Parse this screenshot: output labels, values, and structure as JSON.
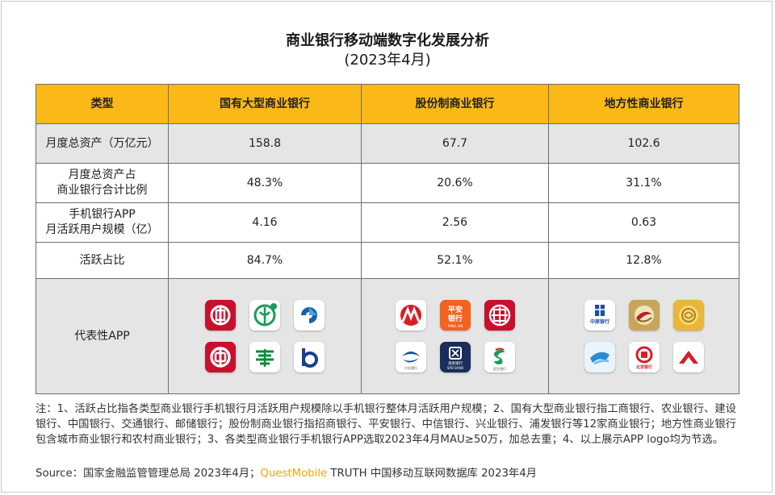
{
  "title": {
    "line1": "商业银行移动端数字化发展分析",
    "line2": "(2023年4月)"
  },
  "table": {
    "headers": [
      "类型",
      "国有大型商业银行",
      "股份制商业银行",
      "地方性商业银行"
    ],
    "rows": [
      {
        "label_lines": [
          "月度总资产（万亿元）"
        ],
        "values": [
          "158.8",
          "67.7",
          "102.6"
        ]
      },
      {
        "label_lines": [
          "月度总资产占",
          "商业银行合计比例"
        ],
        "values": [
          "48.3%",
          "20.6%",
          "31.1%"
        ]
      },
      {
        "label_lines": [
          "手机银行APP",
          "月活跃用户规模（亿）"
        ],
        "values": [
          "4.16",
          "2.56",
          "0.63"
        ]
      },
      {
        "label_lines": [
          "活跃占比"
        ],
        "values": [
          "84.7%",
          "52.1%",
          "12.8%"
        ]
      }
    ],
    "app_row_label": "代表性APP",
    "app_groups": [
      {
        "icons": [
          {
            "name": "icbc-app-icon",
            "bg": "#c8102e"
          },
          {
            "name": "abc-app-icon",
            "bg": "#ffffff"
          },
          {
            "name": "ccb-app-icon",
            "bg": "#ffffff"
          },
          {
            "name": "boc-app-icon",
            "bg": "#c8102e"
          },
          {
            "name": "psbc-app-icon",
            "bg": "#ffffff"
          },
          {
            "name": "bocom-app-icon",
            "bg": "#ffffff"
          }
        ]
      },
      {
        "icons": [
          {
            "name": "cmb-app-icon",
            "bg": "#ffffff"
          },
          {
            "name": "pingan-app-icon",
            "bg": "#f2631f",
            "text": "平安\n银行",
            "sub": "PING AN"
          },
          {
            "name": "citic-app-icon",
            "bg": "#c8102e"
          },
          {
            "name": "cib-app-icon",
            "bg": "#ffffff",
            "sub": "兴业银行"
          },
          {
            "name": "spdb-app-icon",
            "bg": "#1b2d5a",
            "sub": "浦发银行\nSPD BANK"
          },
          {
            "name": "cmbc-app-icon",
            "bg": "#ffffff",
            "sub": "民生银行"
          }
        ]
      },
      {
        "icons": [
          {
            "name": "bank-of-beijing-app-icon",
            "bg": "#ffffff",
            "sub": "中原银行"
          },
          {
            "name": "gold-bank-app-icon",
            "bg": "#c9a55a"
          },
          {
            "name": "gold-coin-app-icon",
            "bg": "#e8b73a"
          },
          {
            "name": "blue-bank-app-icon",
            "bg": "#2b8ad6"
          },
          {
            "name": "beijing-bank-app-icon",
            "bg": "#ffffff",
            "sub": "北京银行"
          },
          {
            "name": "red-arrow-bank-app-icon",
            "bg": "#ffffff"
          }
        ]
      }
    ]
  },
  "notes": "注：1、活跃占比指各类型商业银行手机银行月活跃用户规模除以手机银行整体月活跃用户规模；2、国有大型商业银行指工商银行、农业银行、建设银行、中国银行、交通银行、邮储银行；股份制商业银行指招商银行、平安银行、中信银行、兴业银行、浦发银行等12家商业银行；地方性商业银行包含城市商业银行和农村商业银行；3、各类型商业银行手机银行APP选取2023年4月MAU≥50万，加总去重；4、以上展示APP logo均为节选。",
  "source": {
    "prefix": "Source：国家金融监管管理总局 2023年4月；",
    "brand": "QuestMobile",
    "suffix": " TRUTH 中国移动互联网数据库 2023年4月"
  },
  "colors": {
    "header_bg": "#fbb917",
    "shaded_row_bg": "#e5e5e5",
    "brand": "#f5a400",
    "border": "#6e6e6e"
  }
}
